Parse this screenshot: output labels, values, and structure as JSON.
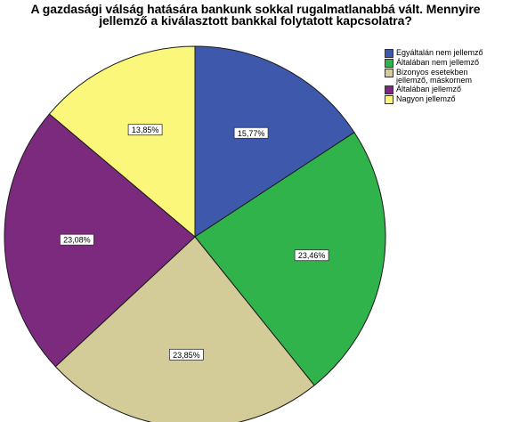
{
  "chart_data": {
    "type": "pie",
    "title": [
      "A gazdasági válság hatására bankunk sokkal rugalmatlanabbá vált. Mennyire",
      "jellemző a kiválasztott bankkal folytatott kapcsolatra?"
    ],
    "start": "top",
    "direction": "clockwise",
    "legend_position": "top-right",
    "series": [
      {
        "name": "Egyáltalán nem jellemző",
        "value": 15.77,
        "label": "15,77%",
        "color": "#3e58ac"
      },
      {
        "name": "Általában nem jellemző",
        "value": 23.46,
        "label": "23,46%",
        "color": "#2fb34a"
      },
      {
        "name": "Bizonyos esetekben\njellemző, máskornem",
        "value": 23.85,
        "label": "23,85%",
        "color": "#d4cc98"
      },
      {
        "name": "Általában jellemző",
        "value": 23.08,
        "label": "23,08%",
        "color": "#7b2a7e"
      },
      {
        "name": "Nagyon jellemző",
        "value": 13.85,
        "label": "13,85%",
        "color": "#fbf77a"
      }
    ]
  }
}
